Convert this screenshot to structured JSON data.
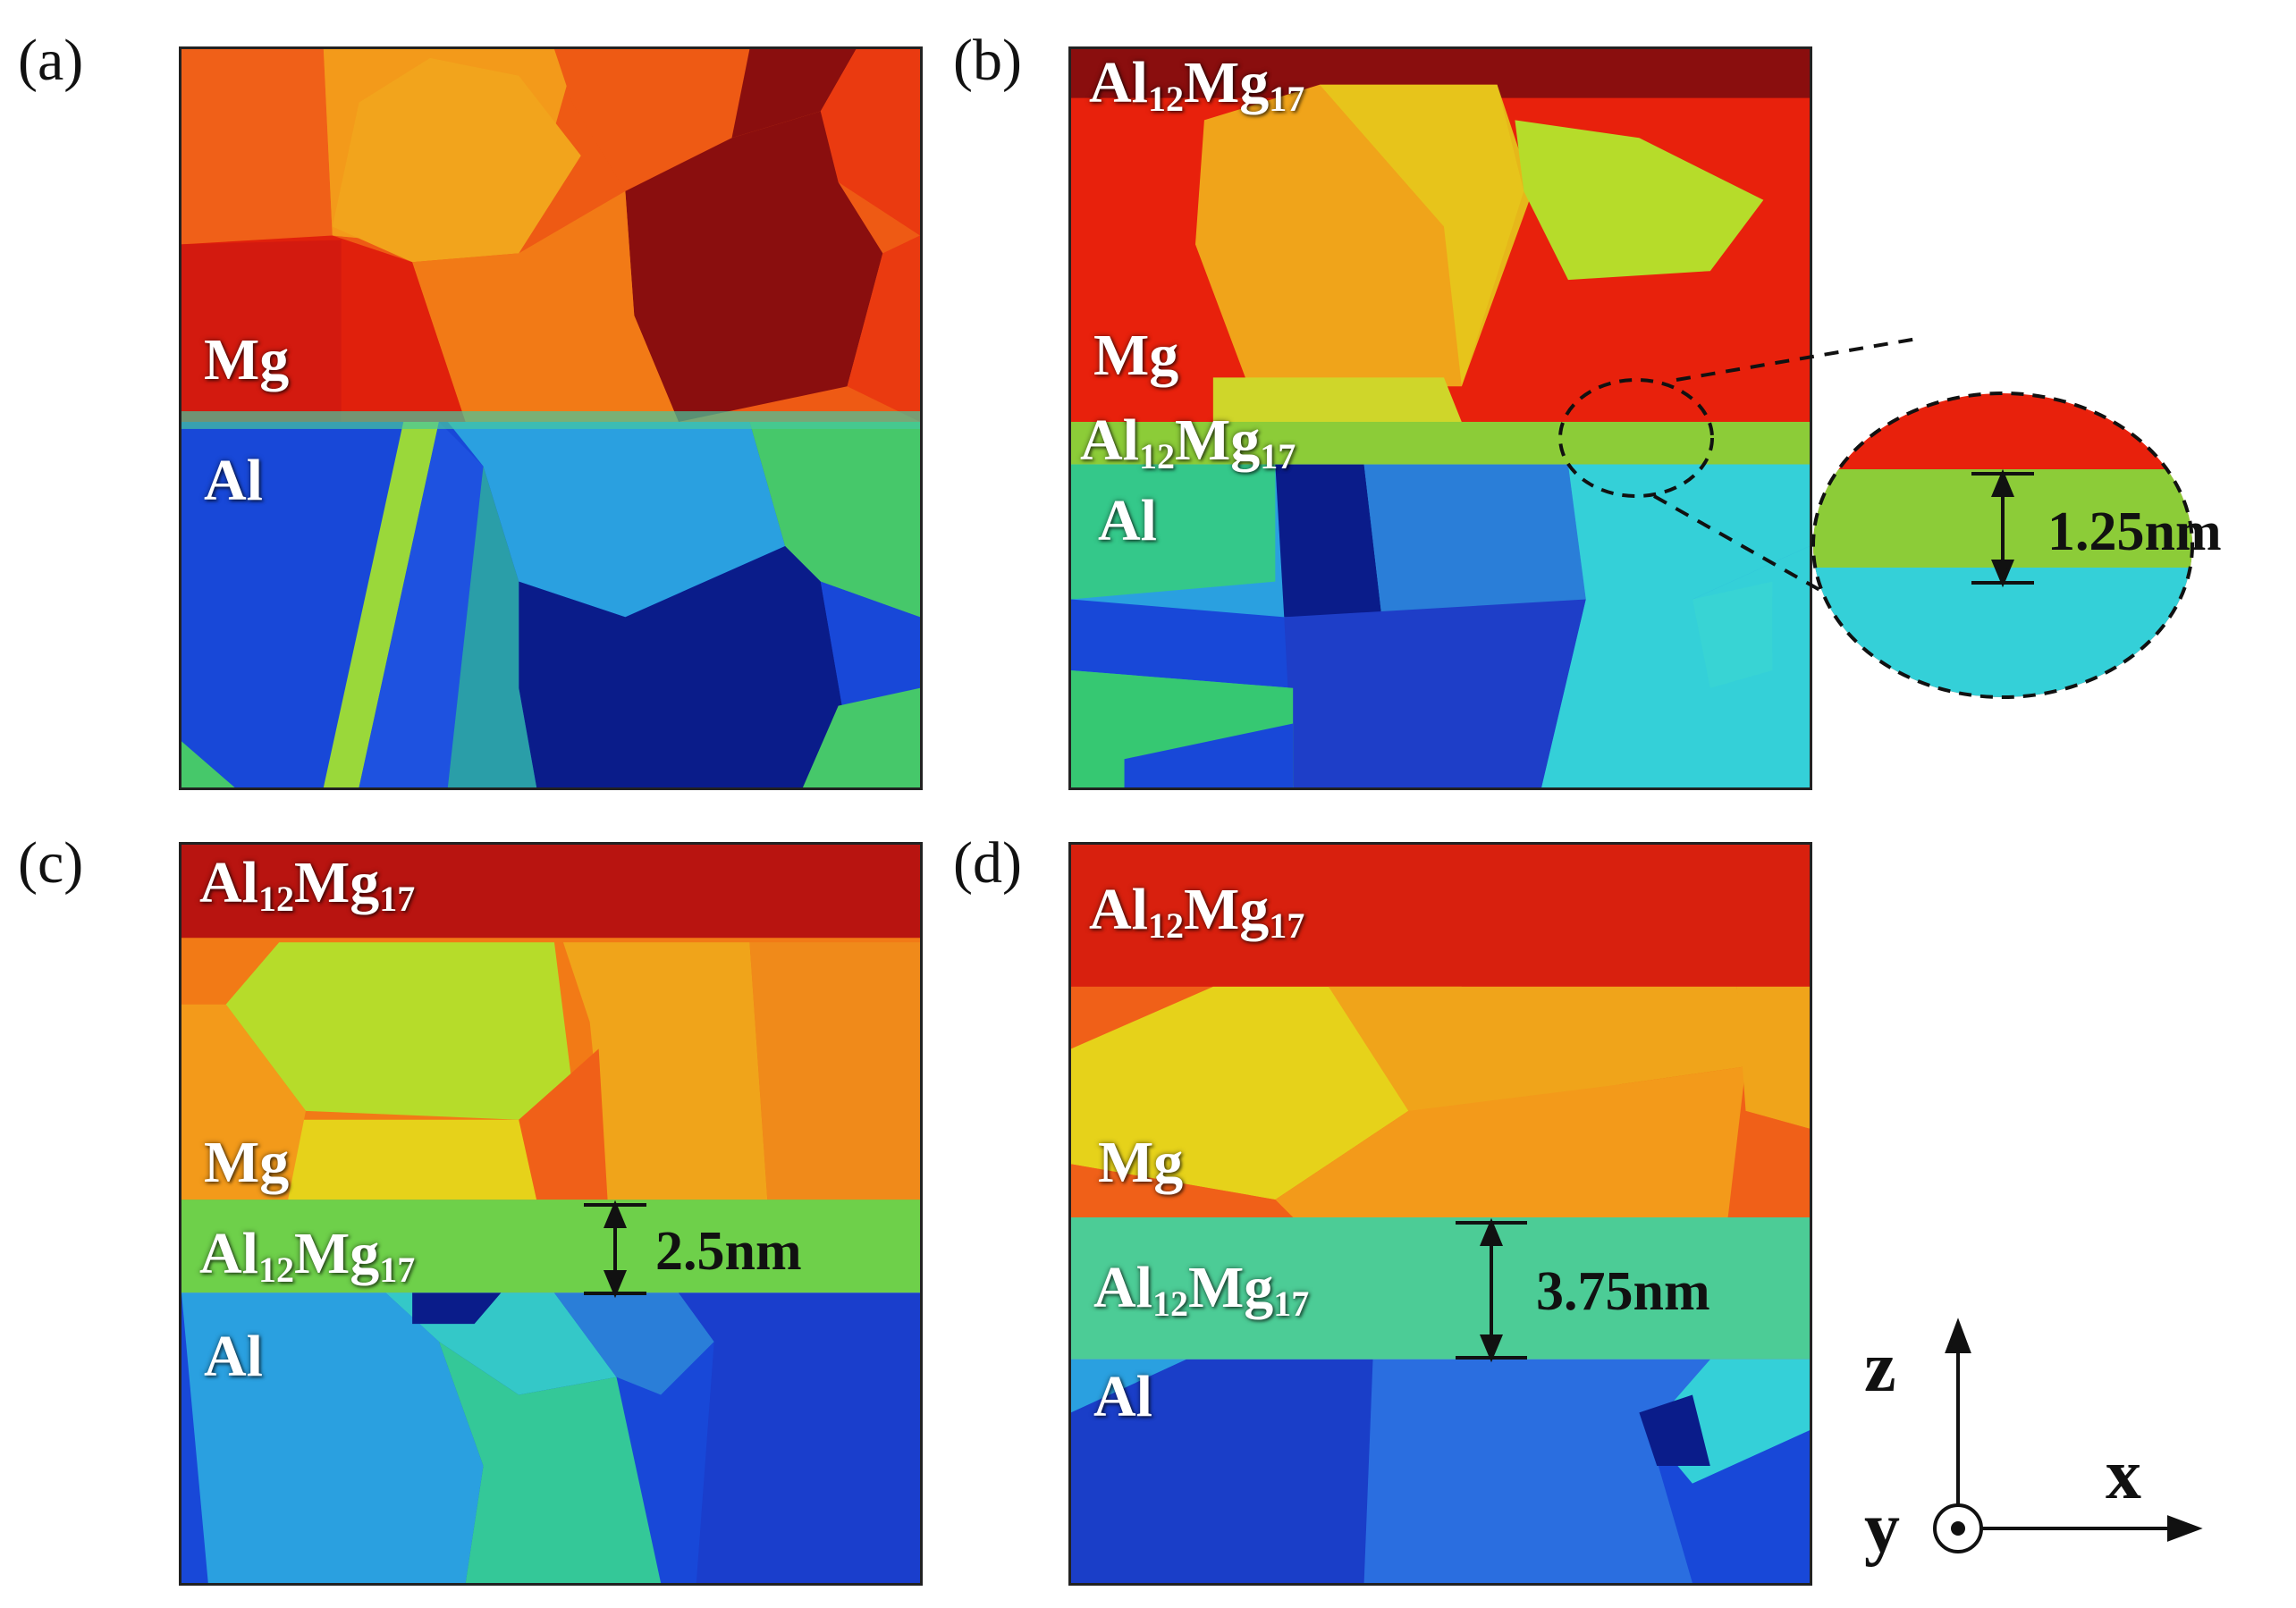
{
  "panels": {
    "a": {
      "letter": "(a)",
      "mg": "Mg",
      "al": "Al"
    },
    "b": {
      "letter": "(b)",
      "mg": "Mg",
      "al": "Al",
      "top_phase": {
        "main": "Al",
        "sub1": "12",
        "mid": "Mg",
        "sub2": "17"
      },
      "int_phase": {
        "main": "Al",
        "sub1": "12",
        "mid": "Mg",
        "sub2": "17"
      },
      "zoom_dimension": "1.25nm"
    },
    "c": {
      "letter": "(c)",
      "mg": "Mg",
      "al": "Al",
      "top_phase": {
        "main": "Al",
        "sub1": "12",
        "mid": "Mg",
        "sub2": "17"
      },
      "int_phase": {
        "main": "Al",
        "sub1": "12",
        "mid": "Mg",
        "sub2": "17"
      },
      "dimension": "2.5nm"
    },
    "d": {
      "letter": "(d)",
      "mg": "Mg",
      "al": "Al",
      "top_phase": {
        "main": "Al",
        "sub1": "12",
        "mid": "Mg",
        "sub2": "17"
      },
      "int_phase": {
        "main": "Al",
        "sub1": "12",
        "mid": "Mg",
        "sub2": "17"
      },
      "dimension": "3.75nm"
    }
  },
  "axes": {
    "z": "z",
    "x": "x",
    "y": "y"
  },
  "colors": {
    "dark_red": "#8a0e0e",
    "red": "#e8210c",
    "orange_red": "#f25a10",
    "orange": "#f39a1a",
    "yellow": "#e6d21a",
    "lime": "#b6dc2a",
    "green": "#5cd25a",
    "cyan": "#34d0d8",
    "light_blue": "#2aa0e0",
    "blue": "#1848d8",
    "dark_blue": "#0a1c8a"
  }
}
